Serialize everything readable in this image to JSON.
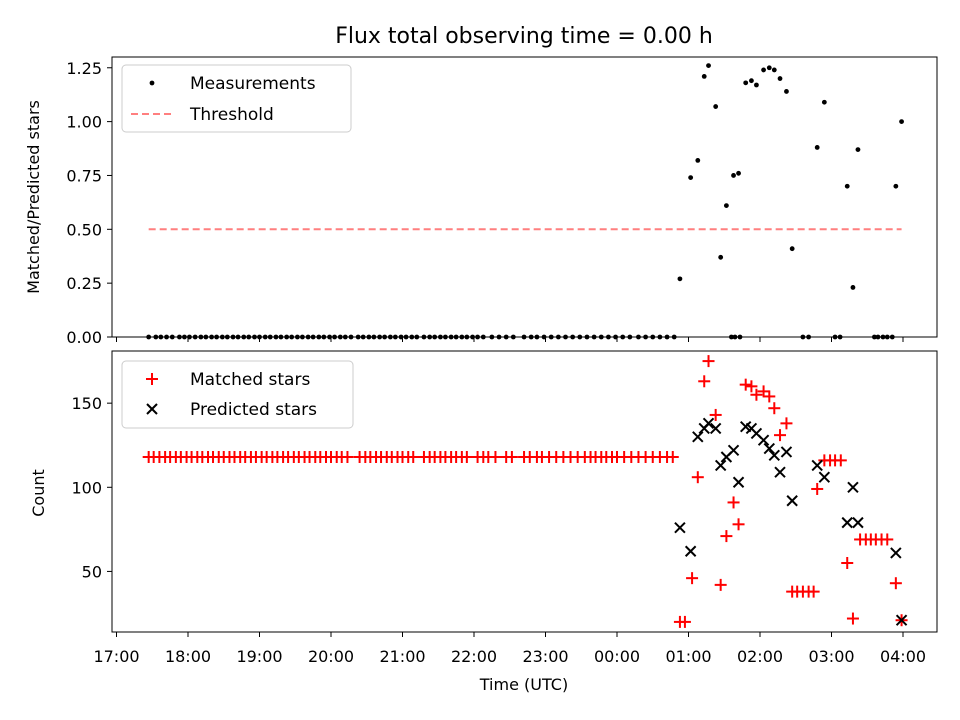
{
  "chart_data": {
    "type": "scatter",
    "title": "Flux total observing time = 0.00 h",
    "xlabel": "Time (UTC)",
    "x_tick_labels": [
      "17:00",
      "18:00",
      "19:00",
      "20:00",
      "21:00",
      "22:00",
      "23:00",
      "00:00",
      "01:00",
      "02:00",
      "03:00",
      "04:00"
    ],
    "top": {
      "ylabel": "Matched/Predicted stars",
      "ylim": [
        0,
        1.3
      ],
      "y_ticks": [
        0,
        0.25,
        0.5,
        0.75,
        1.0,
        1.25
      ],
      "y_tick_labels": [
        "0.00",
        "0.25",
        "0.50",
        "0.75",
        "1.00",
        "1.25"
      ],
      "legend_position": "top-left",
      "threshold": {
        "name": "Threshold",
        "value": 0.5,
        "x_range_h": [
          17.45,
          27.98
        ],
        "color": "#ff7f7f"
      },
      "measurements": {
        "name": "Measurements",
        "color": "#000000",
        "zero_x_h": [
          17.45,
          17.55,
          17.62,
          17.7,
          17.78,
          17.88,
          17.95,
          18.02,
          18.1,
          18.18,
          18.25,
          18.33,
          18.4,
          18.48,
          18.55,
          18.63,
          18.7,
          18.78,
          18.85,
          18.93,
          19.0,
          19.08,
          19.15,
          19.23,
          19.3,
          19.38,
          19.45,
          19.53,
          19.6,
          19.68,
          19.75,
          19.83,
          19.9,
          19.98,
          20.05,
          20.13,
          20.2,
          20.28,
          20.38,
          20.45,
          20.53,
          20.6,
          20.68,
          20.75,
          20.83,
          20.9,
          20.98,
          21.05,
          21.13,
          21.2,
          21.3,
          21.38,
          21.45,
          21.53,
          21.6,
          21.68,
          21.75,
          21.83,
          21.9,
          21.98,
          22.05,
          22.13,
          22.25,
          22.35,
          22.45,
          22.55,
          22.7,
          22.8,
          22.88,
          22.98,
          23.08,
          23.18,
          23.28,
          23.38,
          23.48,
          23.58,
          23.68,
          23.78,
          23.88,
          23.98,
          24.08,
          24.18,
          24.3,
          24.4,
          24.5,
          24.6,
          24.7,
          24.8,
          25.6,
          25.65,
          25.72,
          26.6,
          26.68,
          27.05,
          27.12,
          27.6,
          27.65,
          27.72,
          27.78,
          27.85
        ],
        "points": [
          [
            24.88,
            0.27
          ],
          [
            25.03,
            0.74
          ],
          [
            25.13,
            0.82
          ],
          [
            25.22,
            1.21
          ],
          [
            25.28,
            1.26
          ],
          [
            25.38,
            1.07
          ],
          [
            25.45,
            0.37
          ],
          [
            25.53,
            0.61
          ],
          [
            25.63,
            0.75
          ],
          [
            25.7,
            0.76
          ],
          [
            25.8,
            1.18
          ],
          [
            25.88,
            1.19
          ],
          [
            25.95,
            1.17
          ],
          [
            26.05,
            1.24
          ],
          [
            26.13,
            1.25
          ],
          [
            26.2,
            1.24
          ],
          [
            26.28,
            1.2
          ],
          [
            26.37,
            1.14
          ],
          [
            26.45,
            0.41
          ],
          [
            26.8,
            0.88
          ],
          [
            26.9,
            1.09
          ],
          [
            27.22,
            0.7
          ],
          [
            27.3,
            0.23
          ],
          [
            27.37,
            0.87
          ],
          [
            27.9,
            0.7
          ],
          [
            27.98,
            1.0
          ]
        ]
      }
    },
    "bottom": {
      "ylabel": "Count",
      "ylim": [
        14,
        181
      ],
      "y_ticks": [
        50,
        100,
        150
      ],
      "y_tick_labels": [
        "50",
        "100",
        "150"
      ],
      "legend_position": "top-left",
      "series": [
        {
          "name": "Matched stars",
          "marker": "plus",
          "color": "#ff0000",
          "constant_value": 118,
          "constant_x_h": [
            17.45,
            17.52,
            17.6,
            17.68,
            17.75,
            17.83,
            17.9,
            17.98,
            18.05,
            18.13,
            18.2,
            18.28,
            18.35,
            18.43,
            18.5,
            18.58,
            18.65,
            18.73,
            18.8,
            18.88,
            18.95,
            19.03,
            19.1,
            19.18,
            19.25,
            19.33,
            19.4,
            19.48,
            19.55,
            19.63,
            19.7,
            19.78,
            19.85,
            19.93,
            20.0,
            20.08,
            20.15,
            20.23,
            20.4,
            20.48,
            20.55,
            20.63,
            20.7,
            20.78,
            20.85,
            20.93,
            21.0,
            21.08,
            21.15,
            21.3,
            21.38,
            21.45,
            21.53,
            21.6,
            21.68,
            21.75,
            21.83,
            21.9,
            22.05,
            22.13,
            22.2,
            22.3,
            22.45,
            22.53,
            22.7,
            22.78,
            22.88,
            22.95,
            23.05,
            23.15,
            23.25,
            23.35,
            23.45,
            23.55,
            23.63,
            23.7,
            23.78,
            23.85,
            23.93,
            24.0,
            24.1,
            24.2,
            24.3,
            24.4,
            24.5,
            24.6,
            24.7,
            24.78
          ],
          "points": [
            [
              24.88,
              20
            ],
            [
              24.95,
              20
            ],
            [
              25.05,
              46
            ],
            [
              25.13,
              106
            ],
            [
              25.22,
              163
            ],
            [
              25.28,
              175
            ],
            [
              25.38,
              143
            ],
            [
              25.45,
              42
            ],
            [
              25.53,
              71
            ],
            [
              25.63,
              91
            ],
            [
              25.7,
              78
            ],
            [
              25.8,
              161
            ],
            [
              25.88,
              160
            ],
            [
              25.95,
              155
            ],
            [
              26.05,
              157
            ],
            [
              26.13,
              154
            ],
            [
              26.2,
              147
            ],
            [
              26.28,
              131
            ],
            [
              26.37,
              138
            ],
            [
              26.45,
              38
            ],
            [
              26.52,
              38
            ],
            [
              26.6,
              38
            ],
            [
              26.68,
              38
            ],
            [
              26.75,
              38
            ],
            [
              26.8,
              99
            ],
            [
              26.9,
              116
            ],
            [
              26.98,
              116
            ],
            [
              27.05,
              116
            ],
            [
              27.13,
              116
            ],
            [
              27.22,
              55
            ],
            [
              27.3,
              22
            ],
            [
              27.4,
              69
            ],
            [
              27.48,
              69
            ],
            [
              27.55,
              69
            ],
            [
              27.62,
              69
            ],
            [
              27.7,
              69
            ],
            [
              27.78,
              69
            ],
            [
              27.9,
              43
            ],
            [
              27.98,
              21
            ]
          ]
        },
        {
          "name": "Predicted stars",
          "marker": "x",
          "color": "#000000",
          "points": [
            [
              24.88,
              76
            ],
            [
              25.03,
              62
            ],
            [
              25.13,
              130
            ],
            [
              25.22,
              135
            ],
            [
              25.28,
              138
            ],
            [
              25.38,
              135
            ],
            [
              25.45,
              113
            ],
            [
              25.53,
              118
            ],
            [
              25.63,
              122
            ],
            [
              25.7,
              103
            ],
            [
              25.8,
              136
            ],
            [
              25.88,
              135
            ],
            [
              25.95,
              132
            ],
            [
              26.05,
              128
            ],
            [
              26.13,
              123
            ],
            [
              26.2,
              119
            ],
            [
              26.28,
              109
            ],
            [
              26.37,
              121
            ],
            [
              26.45,
              92
            ],
            [
              26.8,
              113
            ],
            [
              26.9,
              106
            ],
            [
              27.22,
              79
            ],
            [
              27.3,
              100
            ],
            [
              27.37,
              79
            ],
            [
              27.9,
              61
            ],
            [
              27.98,
              21
            ]
          ]
        }
      ]
    }
  }
}
